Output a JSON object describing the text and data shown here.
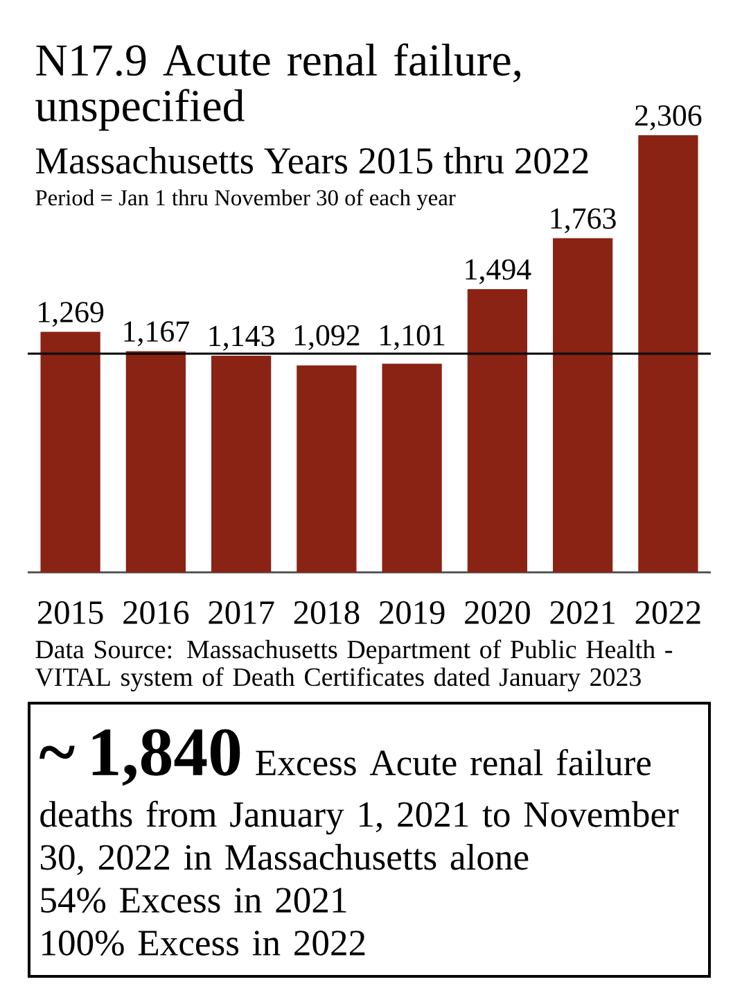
{
  "chart_data": {
    "type": "bar",
    "title": "N17.9 Acute renal failure, unspecified",
    "subtitle": "Massachusetts Years 2015 thru 2022",
    "categories": [
      "2015",
      "2016",
      "2017",
      "2018",
      "2019",
      "2020",
      "2021",
      "2022"
    ],
    "values": [
      1269,
      1167,
      1143,
      1092,
      1101,
      1494,
      1763,
      2306
    ],
    "value_labels": [
      "1,269",
      "1,167",
      "1,143",
      "1,092",
      "1,101",
      "1,494",
      "1,763",
      "2,306"
    ],
    "color": "#8a2314",
    "ref_lines": [
      {
        "axis": "y",
        "value": 1154,
        "color": "#000000"
      }
    ],
    "annotations": [
      "Period = Jan 1 thru November 30 of each year",
      "Data Source: Massachusetts Department of Public Health - VITAL system of Death Certificates dated January 2023",
      "~ 1,840",
      "Excess Acute renal failure",
      "deaths from January 1, 2021 to November 30, 2022 in Massachusetts alone",
      "54% Excess in 2021",
      "100% Excess in 2022"
    ]
  }
}
